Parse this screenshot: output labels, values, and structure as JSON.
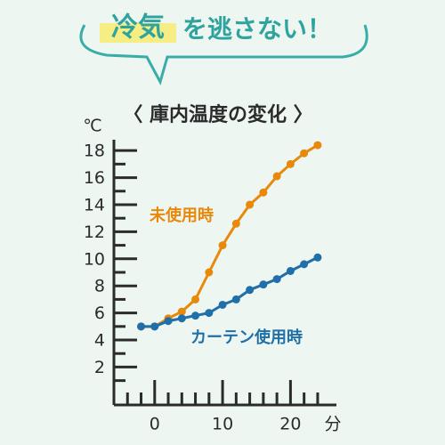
{
  "header": {
    "highlight": "冷気",
    "rest": "を逃さない！"
  },
  "chart_data": {
    "type": "line",
    "title": "〈 庫内温度の変化 〉",
    "y_unit": "℃",
    "x_unit": "分",
    "x": [
      -2,
      0,
      2,
      4,
      6,
      8,
      10,
      12,
      14,
      16,
      18,
      20,
      22,
      24
    ],
    "series": [
      {
        "name": "未使用時",
        "color": "#e8890c",
        "values": [
          5,
          5,
          5.6,
          6.1,
          7,
          9,
          11,
          12.6,
          14,
          14.9,
          16.1,
          17,
          17.8,
          18.4
        ]
      },
      {
        "name": "カーテン使用時",
        "color": "#1f6fa8",
        "values": [
          5,
          5,
          5.4,
          5.6,
          5.8,
          6,
          6.6,
          7,
          7.7,
          8.1,
          8.5,
          9.1,
          9.6,
          10.1
        ]
      }
    ],
    "xlim": [
      -6,
      26.5
    ],
    "ylim": [
      -0.8,
      18.8
    ],
    "xticks": [
      0,
      10,
      20
    ],
    "yticks": [
      2,
      4,
      6,
      8,
      10,
      12,
      14,
      16,
      18
    ],
    "xminorticks": [
      -4,
      -2,
      2,
      4,
      6,
      8,
      12,
      14,
      16,
      18,
      22,
      24
    ],
    "yminorticks": [
      1,
      3,
      5,
      7,
      9,
      11,
      13,
      15,
      17
    ]
  }
}
